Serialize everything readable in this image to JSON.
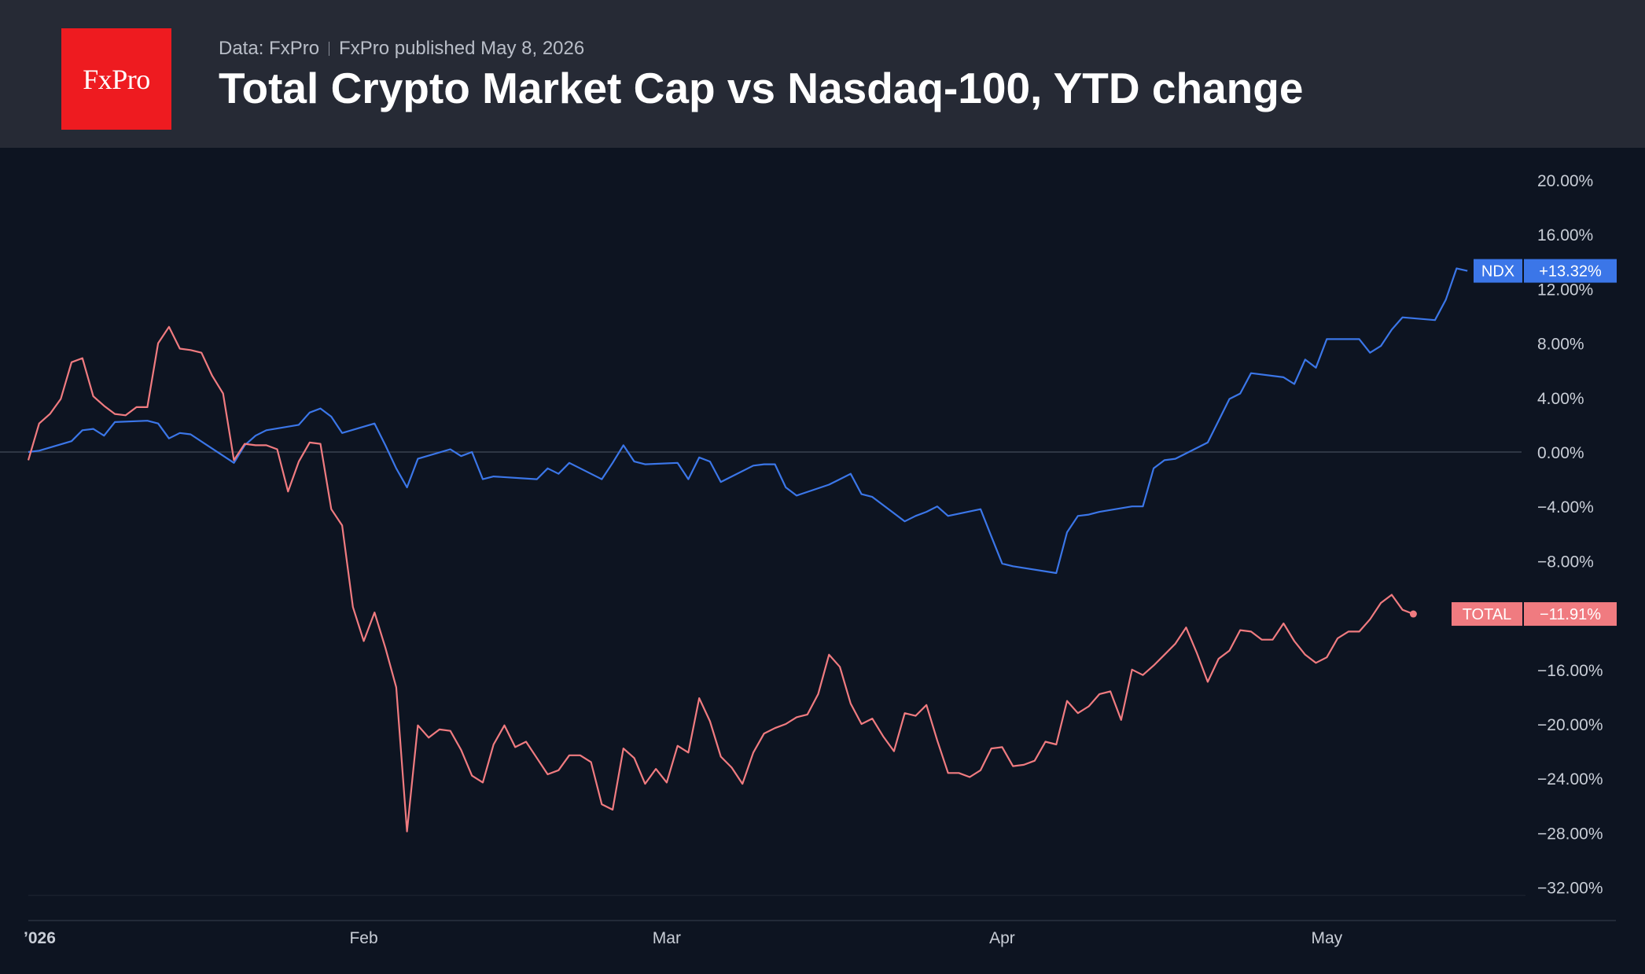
{
  "header": {
    "logo_text": "FxPro",
    "source": "Data: FxPro",
    "published": "FxPro published May 8, 2026",
    "title": "Total Crypto Market Cap vs Nasdaq-100, YTD change"
  },
  "chart_data": {
    "type": "line",
    "title": "Total Crypto Market Cap vs Nasdaq-100, YTD change",
    "xlabel": "",
    "ylabel": "",
    "ylim": [
      -34,
      22
    ],
    "y_ticks": [
      "20.00%",
      "16.00%",
      "12.00%",
      "8.00%",
      "4.00%",
      "0.00%",
      "−4.00%",
      "−8.00%",
      "−16.00%",
      "−20.00%",
      "−24.00%",
      "−28.00%",
      "−32.00%"
    ],
    "y_tick_values": [
      20,
      16,
      12,
      8,
      4,
      0,
      -4,
      -8,
      -16,
      -20,
      -24,
      -28,
      -32
    ],
    "x_tick_labels": [
      "’026",
      "Feb",
      "Mar",
      "Apr",
      "May"
    ],
    "x_tick_dates": [
      "2026-01-01",
      "2026-02-01",
      "2026-03-01",
      "2026-04-01",
      "2026-05-01"
    ],
    "x_range": [
      "2026-01-01",
      "2026-05-19"
    ],
    "grid": "zero line only",
    "background": "#0d1421",
    "series": [
      {
        "name": "NDX",
        "color": "#3b76e8",
        "last_label": "+13.32%",
        "points": [
          [
            "2026-01-01",
            0.0
          ],
          [
            "2026-01-02",
            0.1
          ],
          [
            "2026-01-05",
            0.8
          ],
          [
            "2026-01-06",
            1.6
          ],
          [
            "2026-01-07",
            1.7
          ],
          [
            "2026-01-08",
            1.2
          ],
          [
            "2026-01-09",
            2.2
          ],
          [
            "2026-01-12",
            2.3
          ],
          [
            "2026-01-13",
            2.1
          ],
          [
            "2026-01-14",
            1.0
          ],
          [
            "2026-01-15",
            1.4
          ],
          [
            "2026-01-16",
            1.3
          ],
          [
            "2026-01-20",
            -0.8
          ],
          [
            "2026-01-21",
            0.5
          ],
          [
            "2026-01-22",
            1.2
          ],
          [
            "2026-01-23",
            1.6
          ],
          [
            "2026-01-26",
            2.0
          ],
          [
            "2026-01-27",
            2.9
          ],
          [
            "2026-01-28",
            3.2
          ],
          [
            "2026-01-29",
            2.6
          ],
          [
            "2026-01-30",
            1.4
          ],
          [
            "2026-02-02",
            2.1
          ],
          [
            "2026-02-03",
            0.5
          ],
          [
            "2026-02-04",
            -1.2
          ],
          [
            "2026-02-05",
            -2.6
          ],
          [
            "2026-02-06",
            -0.5
          ],
          [
            "2026-02-09",
            0.2
          ],
          [
            "2026-02-10",
            -0.3
          ],
          [
            "2026-02-11",
            0.0
          ],
          [
            "2026-02-12",
            -2.0
          ],
          [
            "2026-02-13",
            -1.8
          ],
          [
            "2026-02-17",
            -2.0
          ],
          [
            "2026-02-18",
            -1.2
          ],
          [
            "2026-02-19",
            -1.6
          ],
          [
            "2026-02-20",
            -0.8
          ],
          [
            "2026-02-23",
            -2.0
          ],
          [
            "2026-02-24",
            -0.8
          ],
          [
            "2026-02-25",
            0.5
          ],
          [
            "2026-02-26",
            -0.7
          ],
          [
            "2026-02-27",
            -0.9
          ],
          [
            "2026-03-02",
            -0.8
          ],
          [
            "2026-03-03",
            -2.0
          ],
          [
            "2026-03-04",
            -0.4
          ],
          [
            "2026-03-05",
            -0.7
          ],
          [
            "2026-03-06",
            -2.2
          ],
          [
            "2026-03-09",
            -1.0
          ],
          [
            "2026-03-10",
            -0.9
          ],
          [
            "2026-03-11",
            -0.9
          ],
          [
            "2026-03-12",
            -2.6
          ],
          [
            "2026-03-13",
            -3.2
          ],
          [
            "2026-03-16",
            -2.4
          ],
          [
            "2026-03-17",
            -2.0
          ],
          [
            "2026-03-18",
            -1.6
          ],
          [
            "2026-03-19",
            -3.1
          ],
          [
            "2026-03-20",
            -3.3
          ],
          [
            "2026-03-23",
            -5.1
          ],
          [
            "2026-03-24",
            -4.7
          ],
          [
            "2026-03-25",
            -4.4
          ],
          [
            "2026-03-26",
            -4.0
          ],
          [
            "2026-03-27",
            -4.7
          ],
          [
            "2026-03-30",
            -4.2
          ],
          [
            "2026-03-31",
            -6.2
          ],
          [
            "2026-04-01",
            -8.2
          ],
          [
            "2026-04-02",
            -8.4
          ],
          [
            "2026-04-06",
            -8.9
          ],
          [
            "2026-04-07",
            -5.9
          ],
          [
            "2026-04-08",
            -4.7
          ],
          [
            "2026-04-09",
            -4.6
          ],
          [
            "2026-04-10",
            -4.4
          ],
          [
            "2026-04-13",
            -4.0
          ],
          [
            "2026-04-14",
            -4.0
          ],
          [
            "2026-04-15",
            -1.2
          ],
          [
            "2026-04-16",
            -0.6
          ],
          [
            "2026-04-17",
            -0.5
          ],
          [
            "2026-04-20",
            0.7
          ],
          [
            "2026-04-21",
            2.3
          ],
          [
            "2026-04-22",
            3.9
          ],
          [
            "2026-04-23",
            4.3
          ],
          [
            "2026-04-24",
            5.8
          ],
          [
            "2026-04-27",
            5.5
          ],
          [
            "2026-04-28",
            5.0
          ],
          [
            "2026-04-29",
            6.8
          ],
          [
            "2026-04-30",
            6.2
          ],
          [
            "2026-05-01",
            8.3
          ],
          [
            "2026-05-04",
            8.3
          ],
          [
            "2026-05-05",
            7.3
          ],
          [
            "2026-05-06",
            7.8
          ],
          [
            "2026-05-07",
            9.0
          ],
          [
            "2026-05-08",
            9.9
          ],
          [
            "2026-05-11",
            9.7
          ],
          [
            "2026-05-12",
            11.2
          ],
          [
            "2026-05-13",
            13.5
          ],
          [
            "2026-05-14",
            13.32
          ]
        ]
      },
      {
        "name": "TOTAL",
        "color": "#f07b80",
        "last_label": "−11.91%",
        "points": [
          [
            "2026-01-01",
            -0.6
          ],
          [
            "2026-01-02",
            2.1
          ],
          [
            "2026-01-03",
            2.8
          ],
          [
            "2026-01-04",
            3.9
          ],
          [
            "2026-01-05",
            6.6
          ],
          [
            "2026-01-06",
            6.9
          ],
          [
            "2026-01-07",
            4.1
          ],
          [
            "2026-01-08",
            3.4
          ],
          [
            "2026-01-09",
            2.8
          ],
          [
            "2026-01-10",
            2.7
          ],
          [
            "2026-01-11",
            3.3
          ],
          [
            "2026-01-12",
            3.3
          ],
          [
            "2026-01-13",
            8.0
          ],
          [
            "2026-01-14",
            9.2
          ],
          [
            "2026-01-15",
            7.6
          ],
          [
            "2026-01-16",
            7.5
          ],
          [
            "2026-01-17",
            7.3
          ],
          [
            "2026-01-18",
            5.6
          ],
          [
            "2026-01-19",
            4.3
          ],
          [
            "2026-01-20",
            -0.6
          ],
          [
            "2026-01-21",
            0.6
          ],
          [
            "2026-01-22",
            0.5
          ],
          [
            "2026-01-23",
            0.5
          ],
          [
            "2026-01-24",
            0.2
          ],
          [
            "2026-01-25",
            -2.9
          ],
          [
            "2026-01-26",
            -0.7
          ],
          [
            "2026-01-27",
            0.7
          ],
          [
            "2026-01-28",
            0.6
          ],
          [
            "2026-01-29",
            -4.2
          ],
          [
            "2026-01-30",
            -5.4
          ],
          [
            "2026-01-31",
            -11.4
          ],
          [
            "2026-02-01",
            -13.9
          ],
          [
            "2026-02-02",
            -11.8
          ],
          [
            "2026-02-03",
            -14.4
          ],
          [
            "2026-02-04",
            -17.3
          ],
          [
            "2026-02-05",
            -27.9
          ],
          [
            "2026-02-06",
            -20.1
          ],
          [
            "2026-02-07",
            -21.0
          ],
          [
            "2026-02-08",
            -20.4
          ],
          [
            "2026-02-09",
            -20.5
          ],
          [
            "2026-02-10",
            -21.9
          ],
          [
            "2026-02-11",
            -23.8
          ],
          [
            "2026-02-12",
            -24.3
          ],
          [
            "2026-02-13",
            -21.5
          ],
          [
            "2026-02-14",
            -20.1
          ],
          [
            "2026-02-15",
            -21.7
          ],
          [
            "2026-02-16",
            -21.3
          ],
          [
            "2026-02-17",
            -22.5
          ],
          [
            "2026-02-18",
            -23.7
          ],
          [
            "2026-02-19",
            -23.4
          ],
          [
            "2026-02-20",
            -22.3
          ],
          [
            "2026-02-21",
            -22.3
          ],
          [
            "2026-02-22",
            -22.8
          ],
          [
            "2026-02-23",
            -25.9
          ],
          [
            "2026-02-24",
            -26.3
          ],
          [
            "2026-02-25",
            -21.8
          ],
          [
            "2026-02-26",
            -22.5
          ],
          [
            "2026-02-27",
            -24.4
          ],
          [
            "2026-02-28",
            -23.3
          ],
          [
            "2026-03-01",
            -24.3
          ],
          [
            "2026-03-02",
            -21.6
          ],
          [
            "2026-03-03",
            -22.1
          ],
          [
            "2026-03-04",
            -18.1
          ],
          [
            "2026-03-05",
            -19.8
          ],
          [
            "2026-03-06",
            -22.4
          ],
          [
            "2026-03-07",
            -23.2
          ],
          [
            "2026-03-08",
            -24.4
          ],
          [
            "2026-03-09",
            -22.1
          ],
          [
            "2026-03-10",
            -20.7
          ],
          [
            "2026-03-11",
            -20.3
          ],
          [
            "2026-03-12",
            -20.0
          ],
          [
            "2026-03-13",
            -19.5
          ],
          [
            "2026-03-14",
            -19.3
          ],
          [
            "2026-03-15",
            -17.8
          ],
          [
            "2026-03-16",
            -14.9
          ],
          [
            "2026-03-17",
            -15.8
          ],
          [
            "2026-03-18",
            -18.5
          ],
          [
            "2026-03-19",
            -20.0
          ],
          [
            "2026-03-20",
            -19.6
          ],
          [
            "2026-03-21",
            -20.9
          ],
          [
            "2026-03-22",
            -22.0
          ],
          [
            "2026-03-23",
            -19.2
          ],
          [
            "2026-03-24",
            -19.4
          ],
          [
            "2026-03-25",
            -18.6
          ],
          [
            "2026-03-26",
            -21.2
          ],
          [
            "2026-03-27",
            -23.6
          ],
          [
            "2026-03-28",
            -23.6
          ],
          [
            "2026-03-29",
            -23.9
          ],
          [
            "2026-03-30",
            -23.4
          ],
          [
            "2026-03-31",
            -21.8
          ],
          [
            "2026-04-01",
            -21.7
          ],
          [
            "2026-04-02",
            -23.1
          ],
          [
            "2026-04-03",
            -23.0
          ],
          [
            "2026-04-04",
            -22.7
          ],
          [
            "2026-04-05",
            -21.3
          ],
          [
            "2026-04-06",
            -21.5
          ],
          [
            "2026-04-07",
            -18.3
          ],
          [
            "2026-04-08",
            -19.2
          ],
          [
            "2026-04-09",
            -18.7
          ],
          [
            "2026-04-10",
            -17.8
          ],
          [
            "2026-04-11",
            -17.6
          ],
          [
            "2026-04-12",
            -19.7
          ],
          [
            "2026-04-13",
            -16.0
          ],
          [
            "2026-04-14",
            -16.4
          ],
          [
            "2026-04-15",
            -15.7
          ],
          [
            "2026-04-16",
            -14.9
          ],
          [
            "2026-04-17",
            -14.1
          ],
          [
            "2026-04-18",
            -12.9
          ],
          [
            "2026-04-19",
            -14.8
          ],
          [
            "2026-04-20",
            -16.9
          ],
          [
            "2026-04-21",
            -15.2
          ],
          [
            "2026-04-22",
            -14.6
          ],
          [
            "2026-04-23",
            -13.1
          ],
          [
            "2026-04-24",
            -13.2
          ],
          [
            "2026-04-25",
            -13.8
          ],
          [
            "2026-04-26",
            -13.8
          ],
          [
            "2026-04-27",
            -12.6
          ],
          [
            "2026-04-28",
            -13.9
          ],
          [
            "2026-04-29",
            -14.9
          ],
          [
            "2026-04-30",
            -15.5
          ],
          [
            "2026-05-01",
            -15.1
          ],
          [
            "2026-05-02",
            -13.7
          ],
          [
            "2026-05-03",
            -13.2
          ],
          [
            "2026-05-04",
            -13.2
          ],
          [
            "2026-05-05",
            -12.3
          ],
          [
            "2026-05-06",
            -11.1
          ],
          [
            "2026-05-07",
            -10.5
          ],
          [
            "2026-05-08",
            -11.6
          ],
          [
            "2026-05-09",
            -11.91
          ]
        ]
      }
    ]
  }
}
